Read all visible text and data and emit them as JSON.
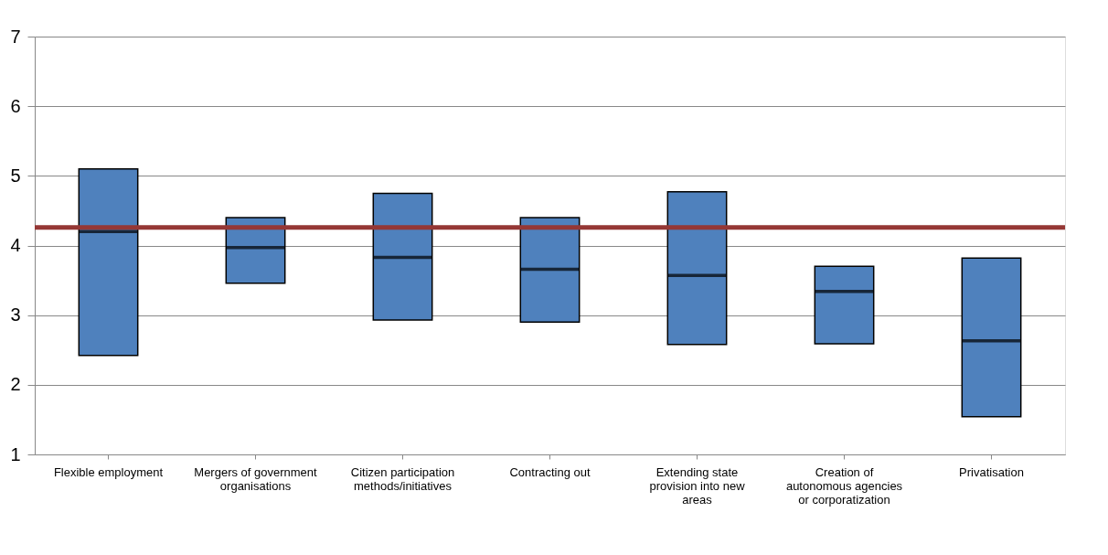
{
  "chart_data": {
    "type": "box",
    "categories": [
      "Flexible employment",
      "Mergers of government organisations",
      "Citizen participation methods/initiatives",
      "Contracting out",
      "Extending state provision into new areas",
      "Creation of autonomous agencies or corporatization",
      "Privatisation"
    ],
    "boxes": [
      {
        "low": 2.42,
        "q1": 2.42,
        "median": 4.2,
        "q3": 5.1,
        "high": 5.1
      },
      {
        "low": 3.46,
        "q1": 3.46,
        "median": 3.97,
        "q3": 4.4,
        "high": 4.4
      },
      {
        "low": 2.93,
        "q1": 2.93,
        "median": 3.83,
        "q3": 4.75,
        "high": 4.75
      },
      {
        "low": 2.9,
        "q1": 2.9,
        "median": 3.66,
        "q3": 4.4,
        "high": 4.4
      },
      {
        "low": 2.58,
        "q1": 2.58,
        "median": 3.57,
        "q3": 4.77,
        "high": 4.77
      },
      {
        "low": 2.59,
        "q1": 2.59,
        "median": 3.34,
        "q3": 3.7,
        "high": 3.7
      },
      {
        "low": 1.54,
        "q1": 1.54,
        "median": 2.63,
        "q3": 3.82,
        "high": 3.82
      }
    ],
    "color": "#4f81bd",
    "ylim": [
      1,
      7
    ],
    "yticks": [
      1,
      2,
      3,
      4,
      5,
      6,
      7
    ],
    "grid": "y",
    "ref_lines": [
      {
        "axis": "y",
        "value": 4.26,
        "color": "#953735"
      }
    ]
  }
}
